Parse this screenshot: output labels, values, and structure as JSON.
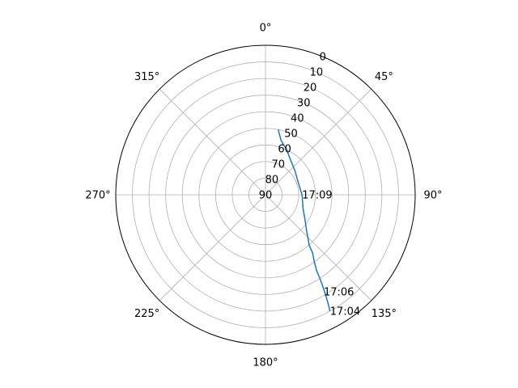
{
  "chart_data": {
    "type": "line",
    "projection": "polar",
    "theta_zero": "N",
    "theta_direction": "clockwise",
    "r_axis": "zenith angle (90 at center, 0 at rim)",
    "r_range": [
      90,
      0
    ],
    "r_ticks": [
      0,
      10,
      20,
      30,
      40,
      50,
      60,
      70,
      80,
      90
    ],
    "r_tick_labels": [
      "0",
      "10",
      "20",
      "30",
      "40",
      "50",
      "60",
      "70",
      "80",
      "90"
    ],
    "theta_ticks": [
      0,
      45,
      90,
      135,
      180,
      225,
      270,
      315
    ],
    "theta_tick_labels": [
      "0°",
      "45°",
      "90°",
      "135°",
      "180°",
      "225°",
      "270°",
      "315°"
    ],
    "grid": true,
    "series": [
      {
        "color": "#1f77b4",
        "points": [
          {
            "az": 151,
            "el": 10
          },
          {
            "az": 150,
            "el": 15
          },
          {
            "az": 149,
            "el": 20
          },
          {
            "az": 148,
            "el": 25
          },
          {
            "az": 147,
            "el": 30
          },
          {
            "az": 146,
            "el": 35
          },
          {
            "az": 144,
            "el": 40
          },
          {
            "az": 141,
            "el": 45
          },
          {
            "az": 139,
            "el": 50
          },
          {
            "az": 135,
            "el": 54
          },
          {
            "az": 130,
            "el": 58
          },
          {
            "az": 122,
            "el": 62
          },
          {
            "az": 110,
            "el": 66
          },
          {
            "az": 90,
            "el": 68
          },
          {
            "az": 70,
            "el": 69
          },
          {
            "az": 50,
            "el": 67
          },
          {
            "az": 35,
            "el": 64
          },
          {
            "az": 25,
            "el": 60
          },
          {
            "az": 16,
            "el": 56
          },
          {
            "az": 11,
            "el": 50
          }
        ]
      }
    ],
    "annotations": [
      {
        "text": "17:04",
        "az": 151,
        "el": 10
      },
      {
        "text": "17:06",
        "az": 149,
        "el": 22
      },
      {
        "text": "17:09",
        "az": 90,
        "el": 68
      }
    ]
  }
}
